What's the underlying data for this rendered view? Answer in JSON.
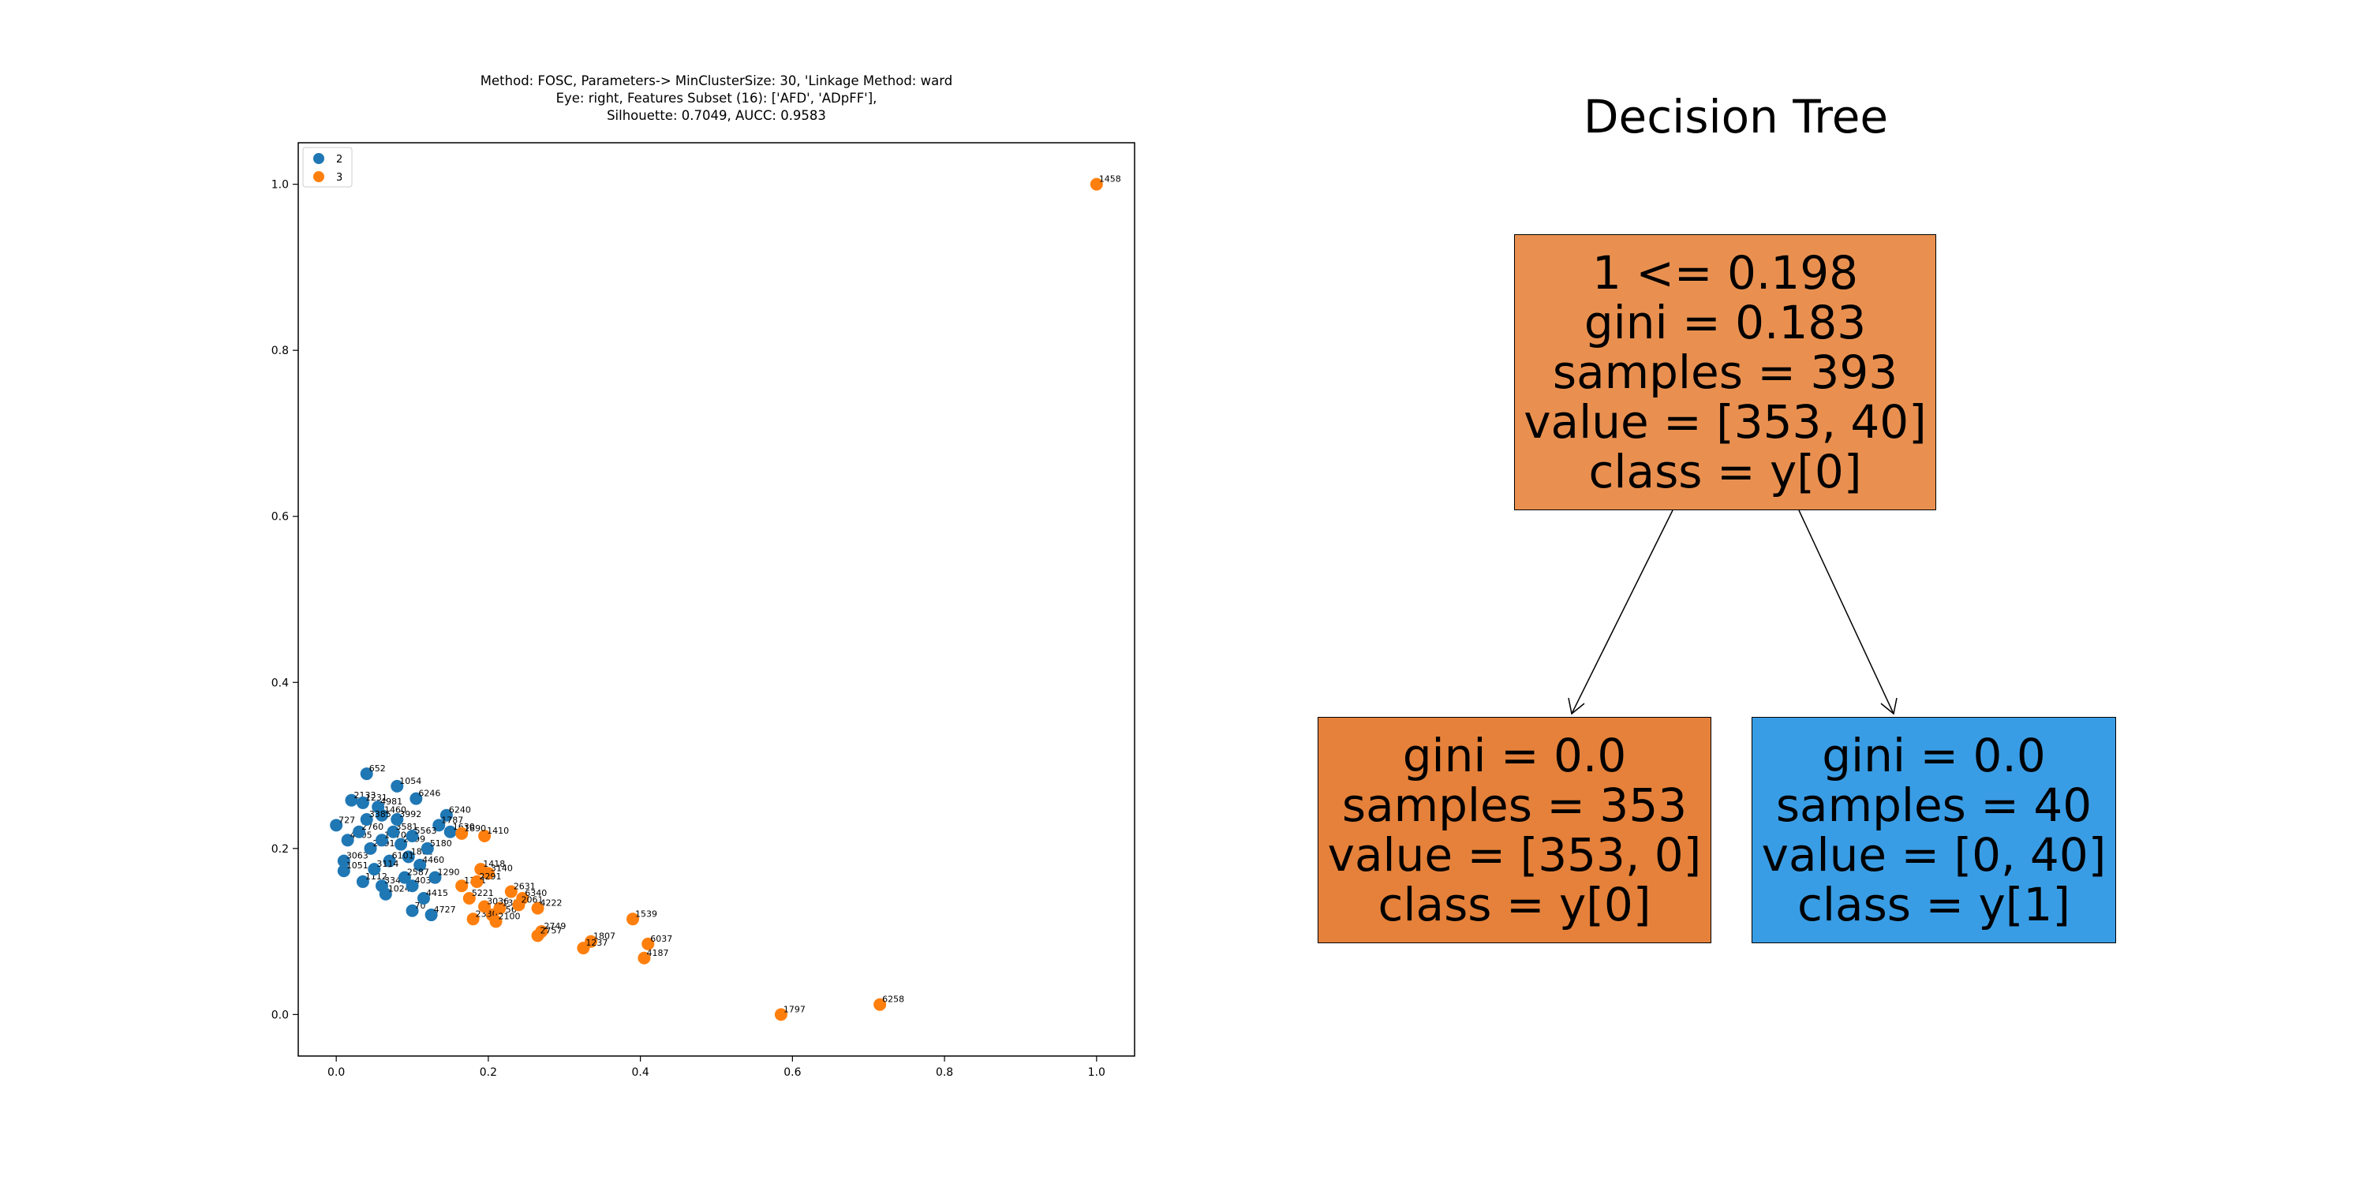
{
  "scatter": {
    "title": "Method: FOSC, Parameters-> MinClusterSize: 30, 'Linkage Method: ward\nEye: right, Features Subset (16): ['AFD', 'ADpFF'],\nSilhouette: 0.7049, AUCC: 0.9583",
    "legend": [
      {
        "label": "2",
        "color": "#1f77b4"
      },
      {
        "label": "3",
        "color": "#ff7f0e"
      }
    ]
  },
  "chart_data": {
    "type": "scatter",
    "xlim": [
      -0.05,
      1.05
    ],
    "ylim": [
      -0.05,
      1.05
    ],
    "xticks": [
      "0.0",
      "0.2",
      "0.4",
      "0.6",
      "0.8",
      "1.0"
    ],
    "yticks": [
      "0.0",
      "0.2",
      "0.4",
      "0.6",
      "0.8",
      "1.0"
    ],
    "legend_position": "upper-left",
    "grid": false,
    "series": [
      {
        "name": "2",
        "color": "#1f77b4",
        "points": [
          {
            "x": 0.04,
            "y": 0.29,
            "label": "652"
          },
          {
            "x": 0.08,
            "y": 0.275,
            "label": "1054"
          },
          {
            "x": 0.105,
            "y": 0.26,
            "label": "6246"
          },
          {
            "x": 0.145,
            "y": 0.24,
            "label": "6240"
          },
          {
            "x": 0.135,
            "y": 0.228,
            "label": "1787"
          },
          {
            "x": 0.15,
            "y": 0.22,
            "label": "1630"
          },
          {
            "x": 0.02,
            "y": 0.258,
            "label": "2133"
          },
          {
            "x": 0.035,
            "y": 0.255,
            "label": "1231"
          },
          {
            "x": 0.055,
            "y": 0.25,
            "label": "4981"
          },
          {
            "x": 0.0,
            "y": 0.228,
            "label": "727"
          },
          {
            "x": 0.015,
            "y": 0.21,
            "label": "4405"
          },
          {
            "x": 0.01,
            "y": 0.185,
            "label": "3063"
          },
          {
            "x": 0.01,
            "y": 0.173,
            "label": "1051"
          },
          {
            "x": 0.035,
            "y": 0.16,
            "label": "1112"
          },
          {
            "x": 0.06,
            "y": 0.155,
            "label": "3340"
          },
          {
            "x": 0.065,
            "y": 0.145,
            "label": "1024"
          },
          {
            "x": 0.1,
            "y": 0.125,
            "label": "70"
          },
          {
            "x": 0.125,
            "y": 0.12,
            "label": "4727"
          },
          {
            "x": 0.045,
            "y": 0.2,
            "label": "2291"
          },
          {
            "x": 0.06,
            "y": 0.21,
            "label": "1470"
          },
          {
            "x": 0.075,
            "y": 0.22,
            "label": "3581"
          },
          {
            "x": 0.085,
            "y": 0.205,
            "label": "2299"
          },
          {
            "x": 0.095,
            "y": 0.19,
            "label": "1801"
          },
          {
            "x": 0.11,
            "y": 0.18,
            "label": "4460"
          },
          {
            "x": 0.12,
            "y": 0.2,
            "label": "5180"
          },
          {
            "x": 0.07,
            "y": 0.185,
            "label": "6101"
          },
          {
            "x": 0.05,
            "y": 0.175,
            "label": "3114"
          },
          {
            "x": 0.09,
            "y": 0.165,
            "label": "2587"
          },
          {
            "x": 0.1,
            "y": 0.155,
            "label": "4033"
          },
          {
            "x": 0.13,
            "y": 0.165,
            "label": "1290"
          },
          {
            "x": 0.08,
            "y": 0.235,
            "label": "3992"
          },
          {
            "x": 0.06,
            "y": 0.24,
            "label": "1460"
          },
          {
            "x": 0.1,
            "y": 0.215,
            "label": "5563"
          },
          {
            "x": 0.03,
            "y": 0.22,
            "label": "2760"
          },
          {
            "x": 0.04,
            "y": 0.235,
            "label": "3385"
          },
          {
            "x": 0.115,
            "y": 0.14,
            "label": "4415"
          }
        ]
      },
      {
        "name": "3",
        "color": "#ff7f0e",
        "points": [
          {
            "x": 1.0,
            "y": 1.0,
            "label": "1458"
          },
          {
            "x": 0.195,
            "y": 0.215,
            "label": "1410"
          },
          {
            "x": 0.165,
            "y": 0.218,
            "label": "1890"
          },
          {
            "x": 0.39,
            "y": 0.115,
            "label": "1539"
          },
          {
            "x": 0.41,
            "y": 0.085,
            "label": "6037"
          },
          {
            "x": 0.405,
            "y": 0.068,
            "label": "4187"
          },
          {
            "x": 0.335,
            "y": 0.088,
            "label": "1807"
          },
          {
            "x": 0.325,
            "y": 0.08,
            "label": "1237"
          },
          {
            "x": 0.27,
            "y": 0.1,
            "label": "2749"
          },
          {
            "x": 0.265,
            "y": 0.095,
            "label": "2757"
          },
          {
            "x": 0.585,
            "y": 0.0,
            "label": "1797"
          },
          {
            "x": 0.715,
            "y": 0.012,
            "label": "6258"
          },
          {
            "x": 0.265,
            "y": 0.128,
            "label": "4222"
          },
          {
            "x": 0.245,
            "y": 0.14,
            "label": "6340"
          },
          {
            "x": 0.23,
            "y": 0.148,
            "label": "2631"
          },
          {
            "x": 0.205,
            "y": 0.12,
            "label": "6056"
          },
          {
            "x": 0.18,
            "y": 0.115,
            "label": "2330"
          },
          {
            "x": 0.2,
            "y": 0.17,
            "label": "3140"
          },
          {
            "x": 0.19,
            "y": 0.175,
            "label": "1418"
          },
          {
            "x": 0.175,
            "y": 0.14,
            "label": "5221"
          },
          {
            "x": 0.215,
            "y": 0.128,
            "label": "1392"
          },
          {
            "x": 0.24,
            "y": 0.132,
            "label": "2061"
          },
          {
            "x": 0.165,
            "y": 0.155,
            "label": "1371"
          },
          {
            "x": 0.185,
            "y": 0.16,
            "label": "2291"
          },
          {
            "x": 0.21,
            "y": 0.112,
            "label": "2100"
          },
          {
            "x": 0.195,
            "y": 0.13,
            "label": "3036"
          }
        ]
      }
    ]
  },
  "tree": {
    "title": "Decision Tree",
    "root": {
      "lines": [
        "1 <= 0.198",
        "gini = 0.183",
        "samples = 393",
        "value = [353, 40]",
        "class = y[0]"
      ],
      "color": "#e99050"
    },
    "left": {
      "lines": [
        "gini = 0.0",
        "samples = 353",
        "value = [353, 0]",
        "class = y[0]"
      ],
      "color": "#e5813a"
    },
    "right": {
      "lines": [
        "gini = 0.0",
        "samples = 40",
        "value = [0, 40]",
        "class = y[1]"
      ],
      "color": "#399de5"
    }
  }
}
